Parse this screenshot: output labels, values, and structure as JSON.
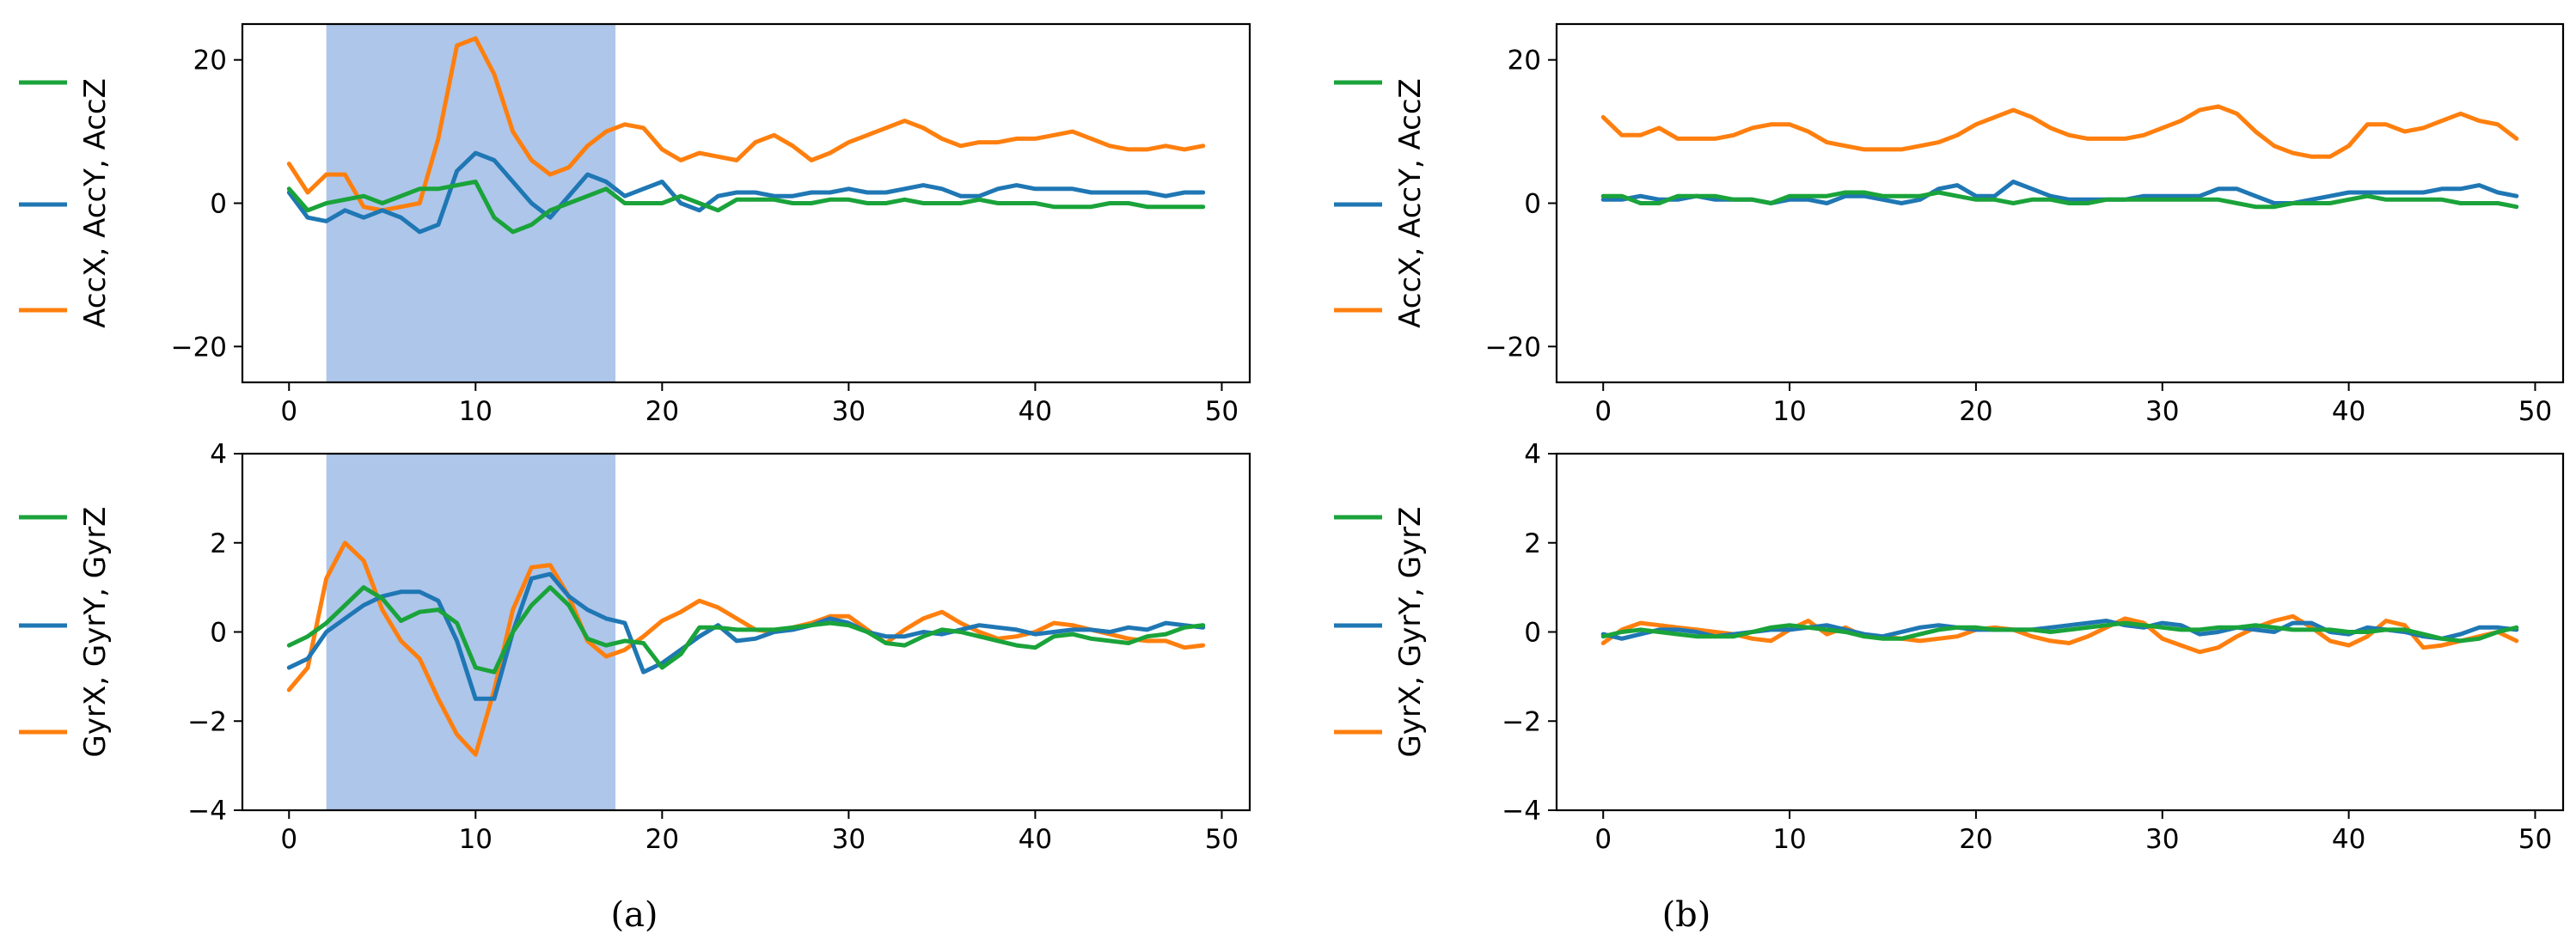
{
  "colors": {
    "green": "#1aa33a",
    "blue": "#1f77b4",
    "orange": "#ff7f0e",
    "highlight": "#aec6ea"
  },
  "labels": {
    "panel_a": "(a)",
    "panel_b": "(b)"
  },
  "legend_stubs": {
    "acc": [
      "green",
      "blue",
      "orange"
    ],
    "gyr": [
      "green",
      "blue",
      "orange"
    ]
  },
  "chart_data": [
    {
      "id": "acc_a",
      "type": "line",
      "ylabel": "AccX, AccY, AccZ",
      "xlim": [
        -2.5,
        51.5
      ],
      "ylim": [
        -25,
        25
      ],
      "xticks": [
        0,
        10,
        20,
        30,
        40,
        50
      ],
      "yticks": [
        -20,
        0,
        20
      ],
      "highlight_x": [
        2,
        17.5
      ],
      "x": [
        0,
        1,
        2,
        3,
        4,
        5,
        6,
        7,
        8,
        9,
        10,
        11,
        12,
        13,
        14,
        15,
        16,
        17,
        18,
        19,
        20,
        21,
        22,
        23,
        24,
        25,
        26,
        27,
        28,
        29,
        30,
        31,
        32,
        33,
        34,
        35,
        36,
        37,
        38,
        39,
        40,
        41,
        42,
        43,
        44,
        45,
        46,
        47,
        48,
        49
      ],
      "series": [
        {
          "color": "orange",
          "values": [
            5.5,
            1.5,
            4,
            4,
            -0.5,
            -1,
            -0.5,
            0,
            9,
            22,
            23,
            18,
            10,
            6,
            4,
            5,
            8,
            10,
            11,
            10.5,
            7.5,
            6,
            7,
            6.5,
            6,
            8.5,
            9.5,
            8,
            6,
            7,
            8.5,
            9.5,
            10.5,
            11.5,
            10.5,
            9,
            8,
            8.5,
            8.5,
            9,
            9,
            9.5,
            10,
            9,
            8,
            7.5,
            7.5,
            8,
            7.5,
            8
          ]
        },
        {
          "color": "blue",
          "values": [
            1.5,
            -2,
            -2.5,
            -1,
            -2,
            -1,
            -2,
            -4,
            -3,
            4.5,
            7,
            6,
            3,
            0,
            -2,
            1,
            4,
            3,
            1,
            2,
            3,
            0,
            -1,
            1,
            1.5,
            1.5,
            1,
            1,
            1.5,
            1.5,
            2,
            1.5,
            1.5,
            2,
            2.5,
            2,
            1,
            1,
            2,
            2.5,
            2,
            2,
            2,
            1.5,
            1.5,
            1.5,
            1.5,
            1,
            1.5,
            1.5
          ]
        },
        {
          "color": "green",
          "values": [
            2,
            -1,
            0,
            0.5,
            1,
            0,
            1,
            2,
            2,
            2.5,
            3,
            -2,
            -4,
            -3,
            -1,
            0,
            1,
            2,
            0,
            0,
            0,
            1,
            0,
            -1,
            0.5,
            0.5,
            0.5,
            0,
            0,
            0.5,
            0.5,
            0,
            0,
            0.5,
            0,
            0,
            0,
            0.5,
            0,
            0,
            0,
            -0.5,
            -0.5,
            -0.5,
            0,
            0,
            -0.5,
            -0.5,
            -0.5,
            -0.5
          ]
        }
      ]
    },
    {
      "id": "gyr_a",
      "type": "line",
      "ylabel": "GyrX, GyrY, GyrZ",
      "xlim": [
        -2.5,
        51.5
      ],
      "ylim": [
        -4,
        4
      ],
      "xticks": [
        0,
        10,
        20,
        30,
        40,
        50
      ],
      "yticks": [
        -4,
        -2,
        0,
        2,
        4
      ],
      "highlight_x": [
        2,
        17.5
      ],
      "x": [
        0,
        1,
        2,
        3,
        4,
        5,
        6,
        7,
        8,
        9,
        10,
        11,
        12,
        13,
        14,
        15,
        16,
        17,
        18,
        19,
        20,
        21,
        22,
        23,
        24,
        25,
        26,
        27,
        28,
        29,
        30,
        31,
        32,
        33,
        34,
        35,
        36,
        37,
        38,
        39,
        40,
        41,
        42,
        43,
        44,
        45,
        46,
        47,
        48,
        49
      ],
      "series": [
        {
          "color": "orange",
          "values": [
            -1.3,
            -0.8,
            1.2,
            2,
            1.6,
            0.5,
            -0.2,
            -0.6,
            -1.5,
            -2.3,
            -2.75,
            -1.3,
            0.5,
            1.45,
            1.5,
            0.8,
            -0.2,
            -0.55,
            -0.4,
            -0.1,
            0.25,
            0.45,
            0.7,
            0.55,
            0.3,
            0.05,
            0,
            0.1,
            0.2,
            0.35,
            0.35,
            0.05,
            -0.25,
            0.05,
            0.3,
            0.45,
            0.2,
            0,
            -0.15,
            -0.1,
            0,
            0.2,
            0.15,
            0.05,
            -0.05,
            -0.15,
            -0.2,
            -0.2,
            -0.35,
            -0.3
          ]
        },
        {
          "color": "blue",
          "values": [
            -0.8,
            -0.6,
            0,
            0.3,
            0.6,
            0.8,
            0.9,
            0.9,
            0.7,
            -0.2,
            -1.5,
            -1.5,
            0,
            1.2,
            1.3,
            0.8,
            0.5,
            0.3,
            0.2,
            -0.9,
            -0.7,
            -0.4,
            -0.1,
            0.15,
            -0.2,
            -0.15,
            0,
            0.05,
            0.15,
            0.3,
            0.2,
            0,
            -0.1,
            -0.1,
            0,
            -0.05,
            0.05,
            0.15,
            0.1,
            0.05,
            -0.05,
            0,
            0.05,
            0.05,
            0,
            0.1,
            0.05,
            0.2,
            0.15,
            0.1
          ]
        },
        {
          "color": "green",
          "values": [
            -0.3,
            -0.1,
            0.2,
            0.6,
            1,
            0.75,
            0.25,
            0.45,
            0.5,
            0.2,
            -0.8,
            -0.9,
            0,
            0.6,
            1,
            0.6,
            -0.15,
            -0.3,
            -0.2,
            -0.25,
            -0.8,
            -0.5,
            0.1,
            0.1,
            0.05,
            0.05,
            0.05,
            0.1,
            0.15,
            0.2,
            0.15,
            0,
            -0.25,
            -0.3,
            -0.1,
            0.05,
            0,
            -0.1,
            -0.2,
            -0.3,
            -0.35,
            -0.1,
            -0.05,
            -0.15,
            -0.2,
            -0.25,
            -0.1,
            -0.05,
            0.1,
            0.15
          ]
        }
      ]
    },
    {
      "id": "acc_b",
      "type": "line",
      "ylabel": "AccX, AccY, AccZ",
      "xlim": [
        -2.5,
        51.5
      ],
      "ylim": [
        -25,
        25
      ],
      "xticks": [
        0,
        10,
        20,
        30,
        40,
        50
      ],
      "yticks": [
        -20,
        0,
        20
      ],
      "x": [
        0,
        1,
        2,
        3,
        4,
        5,
        6,
        7,
        8,
        9,
        10,
        11,
        12,
        13,
        14,
        15,
        16,
        17,
        18,
        19,
        20,
        21,
        22,
        23,
        24,
        25,
        26,
        27,
        28,
        29,
        30,
        31,
        32,
        33,
        34,
        35,
        36,
        37,
        38,
        39,
        40,
        41,
        42,
        43,
        44,
        45,
        46,
        47,
        48,
        49
      ],
      "series": [
        {
          "color": "orange",
          "values": [
            12,
            9.5,
            9.5,
            10.5,
            9,
            9,
            9,
            9.5,
            10.5,
            11,
            11,
            10,
            8.5,
            8,
            7.5,
            7.5,
            7.5,
            8,
            8.5,
            9.5,
            11,
            12,
            13,
            12,
            10.5,
            9.5,
            9,
            9,
            9,
            9.5,
            10.5,
            11.5,
            13,
            13.5,
            12.5,
            10,
            8,
            7,
            6.5,
            6.5,
            8,
            11,
            11,
            10,
            10.5,
            11.5,
            12.5,
            11.5,
            11,
            9
          ]
        },
        {
          "color": "blue",
          "values": [
            0.5,
            0.5,
            1,
            0.5,
            0.5,
            1,
            0.5,
            0.5,
            0.5,
            0,
            0.5,
            0.5,
            0,
            1,
            1,
            0.5,
            0,
            0.5,
            2,
            2.5,
            1,
            1,
            3,
            2,
            1,
            0.5,
            0.5,
            0.5,
            0.5,
            1,
            1,
            1,
            1,
            2,
            2,
            1,
            0,
            0,
            0.5,
            1,
            1.5,
            1.5,
            1.5,
            1.5,
            1.5,
            2,
            2,
            2.5,
            1.5,
            1
          ]
        },
        {
          "color": "green",
          "values": [
            1,
            1,
            0,
            0,
            1,
            1,
            1,
            0.5,
            0.5,
            0,
            1,
            1,
            1,
            1.5,
            1.5,
            1,
            1,
            1,
            1.5,
            1,
            0.5,
            0.5,
            0,
            0.5,
            0.5,
            0,
            0,
            0.5,
            0.5,
            0.5,
            0.5,
            0.5,
            0.5,
            0.5,
            0,
            -0.5,
            -0.5,
            0,
            0,
            0,
            0.5,
            1,
            0.5,
            0.5,
            0.5,
            0.5,
            0,
            0,
            0,
            -0.5
          ]
        }
      ]
    },
    {
      "id": "gyr_b",
      "type": "line",
      "ylabel": "GyrX, GyrY, GyrZ",
      "xlim": [
        -2.5,
        51.5
      ],
      "ylim": [
        -4,
        4
      ],
      "xticks": [
        0,
        10,
        20,
        30,
        40,
        50
      ],
      "yticks": [
        -4,
        -2,
        0,
        2,
        4
      ],
      "x": [
        0,
        1,
        2,
        3,
        4,
        5,
        6,
        7,
        8,
        9,
        10,
        11,
        12,
        13,
        14,
        15,
        16,
        17,
        18,
        19,
        20,
        21,
        22,
        23,
        24,
        25,
        26,
        27,
        28,
        29,
        30,
        31,
        32,
        33,
        34,
        35,
        36,
        37,
        38,
        39,
        40,
        41,
        42,
        43,
        44,
        45,
        46,
        47,
        48,
        49
      ],
      "series": [
        {
          "color": "orange",
          "values": [
            -0.25,
            0.05,
            0.2,
            0.15,
            0.1,
            0.05,
            0,
            -0.05,
            -0.15,
            -0.2,
            0.05,
            0.25,
            -0.05,
            0.1,
            -0.1,
            -0.1,
            -0.15,
            -0.2,
            -0.15,
            -0.1,
            0.05,
            0.1,
            0.05,
            -0.1,
            -0.2,
            -0.25,
            -0.1,
            0.1,
            0.3,
            0.2,
            -0.15,
            -0.3,
            -0.45,
            -0.35,
            -0.1,
            0.1,
            0.25,
            0.35,
            0.1,
            -0.2,
            -0.3,
            -0.1,
            0.25,
            0.15,
            -0.35,
            -0.3,
            -0.2,
            -0.1,
            0,
            -0.2
          ]
        },
        {
          "color": "blue",
          "values": [
            -0.05,
            -0.15,
            -0.05,
            0.05,
            0.05,
            0,
            -0.1,
            -0.05,
            0,
            0.05,
            0.05,
            0.1,
            0.15,
            0.05,
            -0.05,
            -0.1,
            0,
            0.1,
            0.15,
            0.1,
            0.05,
            0.05,
            0.05,
            0.05,
            0.1,
            0.15,
            0.2,
            0.25,
            0.15,
            0.1,
            0.2,
            0.15,
            -0.05,
            0,
            0.1,
            0.05,
            0,
            0.2,
            0.2,
            0,
            -0.05,
            0.1,
            0.05,
            0,
            -0.1,
            -0.15,
            -0.05,
            0.1,
            0.1,
            0.05
          ]
        },
        {
          "color": "green",
          "values": [
            -0.1,
            0,
            0.05,
            0,
            -0.05,
            -0.1,
            -0.1,
            -0.1,
            0,
            0.1,
            0.15,
            0.1,
            0.05,
            0,
            -0.1,
            -0.15,
            -0.15,
            -0.05,
            0.05,
            0.1,
            0.1,
            0.05,
            0.05,
            0.05,
            0,
            0.05,
            0.1,
            0.15,
            0.2,
            0.15,
            0.1,
            0.05,
            0.05,
            0.1,
            0.1,
            0.15,
            0.1,
            0.05,
            0.05,
            0.05,
            0,
            0,
            0.05,
            0.05,
            -0.05,
            -0.15,
            -0.2,
            -0.15,
            0,
            0.1
          ]
        }
      ]
    }
  ]
}
